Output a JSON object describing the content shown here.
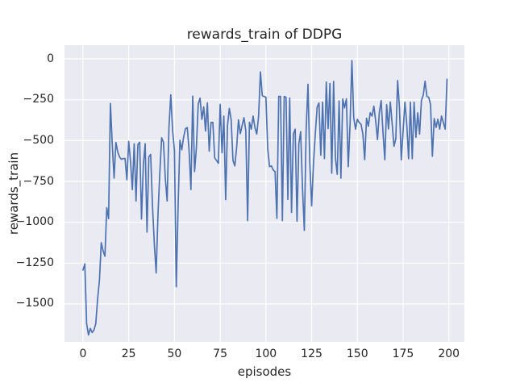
{
  "figure": {
    "title": "rewards_train of DDPG",
    "xlabel": "episodes",
    "ylabel": "rewards_train"
  },
  "chart_data": {
    "type": "line",
    "title": "rewards_train of DDPG",
    "xlabel": "episodes",
    "ylabel": "rewards_train",
    "legend": "none",
    "grid": "on",
    "style": "seaborn-darkgrid",
    "line_color": "#4c72b0",
    "plot_background": "#eaeaf2",
    "grid_color": "#ffffff",
    "text_color": "#262626",
    "x_description": "episode index, one point per episode starting at 0",
    "xlim": [
      -10.1,
      208.5
    ],
    "ylim": [
      -1732,
      84
    ],
    "xticks": [
      0,
      25,
      50,
      75,
      100,
      125,
      150,
      175,
      200
    ],
    "xtick_labels": [
      "0",
      "25",
      "50",
      "75",
      "100",
      "125",
      "150",
      "175",
      "200"
    ],
    "yticks": [
      0,
      -250,
      -500,
      -750,
      -1000,
      -1250,
      -1500
    ],
    "ytick_labels": [
      "0",
      "−250",
      "−500",
      "−750",
      "−1000",
      "−1250",
      "−1500"
    ],
    "values": [
      -1292,
      -1255,
      -1620,
      -1690,
      -1650,
      -1675,
      -1660,
      -1620,
      -1470,
      -1355,
      -1125,
      -1175,
      -1208,
      -911,
      -978,
      -273,
      -520,
      -730,
      -511,
      -570,
      -600,
      -615,
      -610,
      -610,
      -740,
      -505,
      -630,
      -800,
      -520,
      -870,
      -525,
      -510,
      -980,
      -650,
      -519,
      -1060,
      -600,
      -585,
      -900,
      -1130,
      -1310,
      -950,
      -700,
      -483,
      -510,
      -729,
      -870,
      -420,
      -220,
      -440,
      -560,
      -1395,
      -903,
      -498,
      -557,
      -480,
      -428,
      -420,
      -560,
      -800,
      -228,
      -690,
      -543,
      -277,
      -240,
      -370,
      -294,
      -441,
      -270,
      -565,
      -389,
      -389,
      -606,
      -622,
      -639,
      -278,
      -574,
      -350,
      -861,
      -408,
      -303,
      -373,
      -622,
      -655,
      -541,
      -373,
      -457,
      -408,
      -360,
      -440,
      -990,
      -388,
      -430,
      -350,
      -420,
      -460,
      -350,
      -80,
      -225,
      -230,
      -235,
      -550,
      -660,
      -655,
      -680,
      -690,
      -976,
      -230,
      -230,
      -990,
      -230,
      -235,
      -860,
      -240,
      -940,
      -460,
      -430,
      -994,
      -520,
      -445,
      -790,
      -1050,
      -430,
      -155,
      -640,
      -900,
      -640,
      -460,
      -295,
      -270,
      -590,
      -265,
      -610,
      -142,
      -427,
      -151,
      -700,
      -138,
      -610,
      -706,
      -257,
      -730,
      -245,
      -300,
      -245,
      -660,
      -400,
      -10,
      -360,
      -430,
      -370,
      -390,
      -400,
      -460,
      -617,
      -363,
      -412,
      -330,
      -350,
      -289,
      -379,
      -494,
      -330,
      -255,
      -450,
      -617,
      -280,
      -429,
      -264,
      -395,
      -535,
      -490,
      -133,
      -300,
      -618,
      -440,
      -265,
      -400,
      -611,
      -265,
      -611,
      -265,
      -480,
      -330,
      -460,
      -255,
      -222,
      -137,
      -230,
      -235,
      -280,
      -596,
      -365,
      -420,
      -370,
      -430,
      -350,
      -390,
      -430,
      -125
    ]
  }
}
